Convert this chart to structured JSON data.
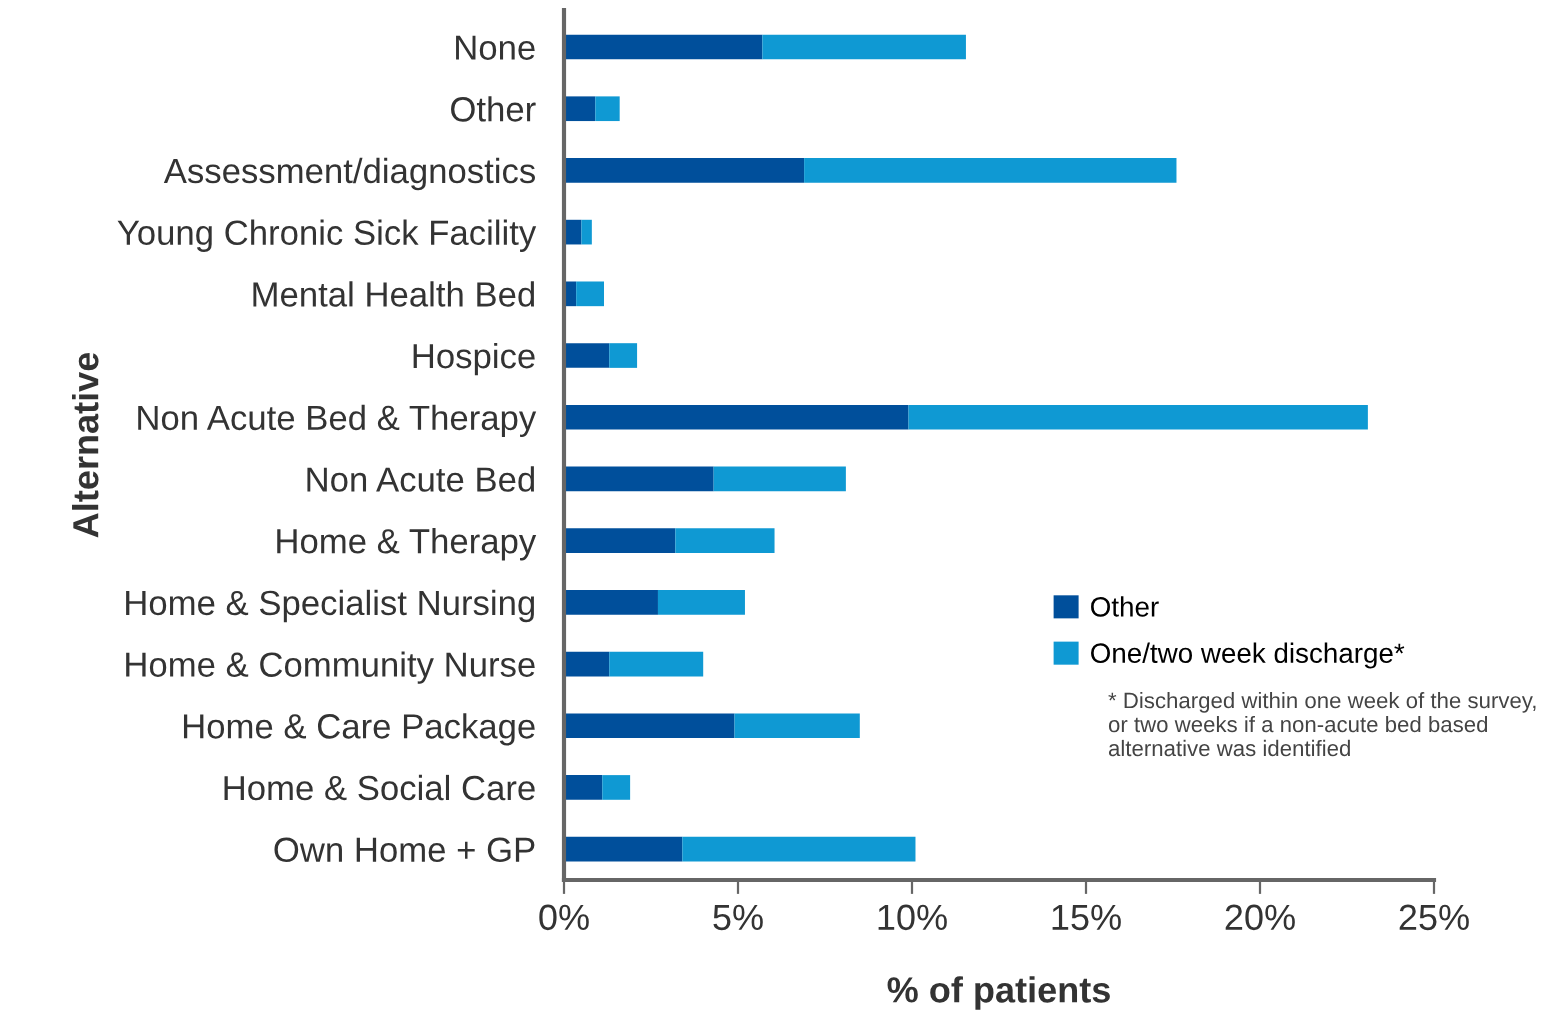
{
  "chart_data": {
    "type": "bar",
    "orientation": "horizontal",
    "stacked": true,
    "xlabel": "% of patients",
    "ylabel": "Alternative",
    "categories": [
      "None",
      "Other",
      "Assessment/diagnostics",
      "Young Chronic Sick Facility",
      "Mental Health Bed",
      "Hospice",
      "Non Acute Bed & Therapy",
      "Non Acute Bed",
      "Home & Therapy",
      "Home & Specialist Nursing",
      "Home & Community Nurse",
      "Home & Care Package",
      "Home & Social Care",
      "Own Home + GP"
    ],
    "series": [
      {
        "name": "Other",
        "color": "#004f9b",
        "values": [
          5.7,
          0.9,
          6.9,
          0.5,
          0.35,
          1.3,
          9.9,
          4.3,
          3.2,
          2.7,
          1.3,
          4.9,
          1.1,
          3.4
        ]
      },
      {
        "name": "One/two week discharge*",
        "color": "#0f99d3",
        "values": [
          5.85,
          0.7,
          10.7,
          0.3,
          0.8,
          0.8,
          13.2,
          3.8,
          2.85,
          2.5,
          2.7,
          3.6,
          0.8,
          6.7
        ]
      }
    ],
    "xlim": [
      0,
      25
    ],
    "xticks": [
      {
        "value": 0,
        "label": "0%"
      },
      {
        "value": 5,
        "label": "5%"
      },
      {
        "value": 10,
        "label": "10%"
      },
      {
        "value": 15,
        "label": "15%"
      },
      {
        "value": 20,
        "label": "20%"
      },
      {
        "value": 25,
        "label": "25%"
      }
    ],
    "legend": "right",
    "grid": false,
    "annotations": [
      "* Discharged within one week of the survey,\nor two weeks if a non-acute bed based\nalternative was identified"
    ]
  }
}
